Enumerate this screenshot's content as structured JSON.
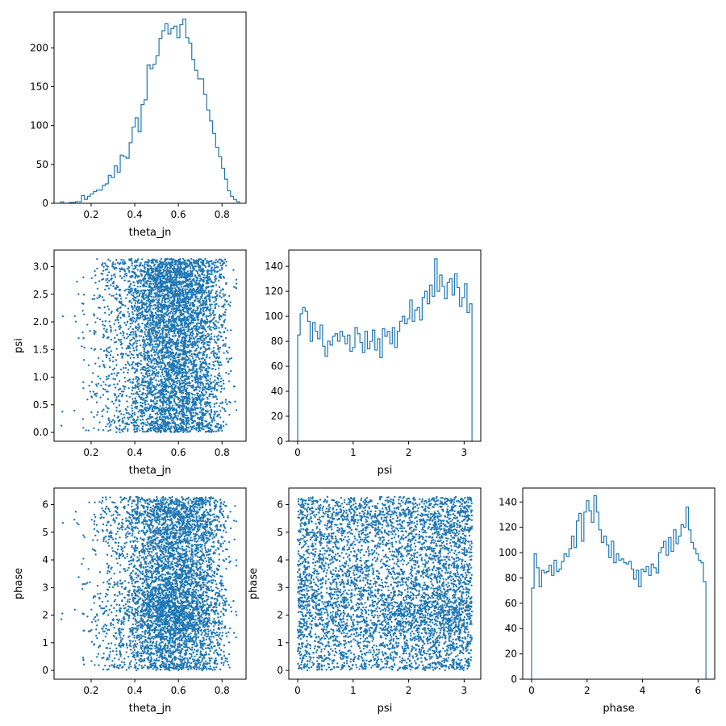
{
  "colors": {
    "series": "#1f77b4",
    "axes": "#000000",
    "background": "#ffffff"
  },
  "chart_data": [
    {
      "id": "hist_theta_jn",
      "type": "histogram",
      "row": 0,
      "col": 0,
      "xlabel": "theta_jn",
      "ylabel": "",
      "xlim": [
        0.03,
        0.91
      ],
      "ylim": [
        0,
        246
      ],
      "xticks": [
        0.2,
        0.4,
        0.6,
        0.8
      ],
      "yticks": [
        0,
        50,
        100,
        150,
        200
      ],
      "bin_range": [
        0.06,
        0.88
      ],
      "bins": 60,
      "counts": [
        2,
        0,
        0,
        1,
        1,
        2,
        2,
        10,
        5,
        9,
        12,
        15,
        17,
        17,
        23,
        25,
        36,
        33,
        48,
        40,
        62,
        60,
        58,
        78,
        98,
        110,
        92,
        127,
        133,
        178,
        173,
        179,
        190,
        212,
        222,
        231,
        218,
        225,
        228,
        213,
        230,
        237,
        213,
        206,
        185,
        171,
        160,
        160,
        140,
        120,
        106,
        90,
        72,
        60,
        45,
        31,
        16,
        9,
        5,
        2
      ],
      "grid": false
    },
    {
      "id": "scatter_theta_jn_psi",
      "type": "scatter",
      "row": 1,
      "col": 0,
      "xlabel": "theta_jn",
      "ylabel": "psi",
      "xlim": [
        0.03,
        0.91
      ],
      "ylim": [
        -0.16,
        3.3
      ],
      "xticks": [
        0.2,
        0.4,
        0.6,
        0.8
      ],
      "yticks": [
        0.0,
        0.5,
        1.0,
        1.5,
        2.0,
        2.5,
        3.0
      ],
      "x_param": "theta_jn",
      "y_param": "psi",
      "grid": false
    },
    {
      "id": "hist_psi",
      "type": "histogram",
      "row": 1,
      "col": 1,
      "xlabel": "psi",
      "ylabel": "",
      "xlim": [
        -0.16,
        3.3
      ],
      "ylim": [
        0,
        153
      ],
      "xticks": [
        0,
        1,
        2,
        3
      ],
      "yticks": [
        0,
        20,
        40,
        60,
        80,
        100,
        120,
        140
      ],
      "bin_range": [
        0,
        3.14159
      ],
      "bins": 70,
      "counts": [
        85,
        102,
        107,
        104,
        96,
        80,
        95,
        88,
        82,
        93,
        76,
        68,
        80,
        77,
        84,
        86,
        80,
        88,
        84,
        78,
        85,
        72,
        75,
        91,
        86,
        79,
        71,
        88,
        74,
        80,
        89,
        73,
        82,
        67,
        90,
        84,
        88,
        78,
        91,
        75,
        88,
        96,
        100,
        94,
        98,
        113,
        96,
        105,
        107,
        97,
        115,
        120,
        110,
        125,
        116,
        146,
        120,
        133,
        124,
        114,
        127,
        130,
        117,
        134,
        123,
        108,
        115,
        126,
        103,
        110
      ],
      "grid": false
    },
    {
      "id": "scatter_theta_jn_phase",
      "type": "scatter",
      "row": 2,
      "col": 0,
      "xlabel": "theta_jn",
      "ylabel": "phase",
      "xlim": [
        0.03,
        0.91
      ],
      "ylim": [
        -0.32,
        6.6
      ],
      "xticks": [
        0.2,
        0.4,
        0.6,
        0.8
      ],
      "yticks": [
        0,
        1,
        2,
        3,
        4,
        5,
        6
      ],
      "x_param": "theta_jn",
      "y_param": "phase",
      "grid": false
    },
    {
      "id": "scatter_psi_phase",
      "type": "scatter",
      "row": 2,
      "col": 1,
      "xlabel": "psi",
      "ylabel": "phase",
      "xlim": [
        -0.16,
        3.3
      ],
      "ylim": [
        -0.32,
        6.6
      ],
      "xticks": [
        0,
        1,
        2,
        3
      ],
      "yticks": [
        0,
        1,
        2,
        3,
        4,
        5,
        6
      ],
      "x_param": "psi",
      "y_param": "phase",
      "grid": false
    },
    {
      "id": "hist_phase",
      "type": "histogram",
      "row": 2,
      "col": 2,
      "xlabel": "phase",
      "ylabel": "",
      "xlim": [
        -0.32,
        6.6
      ],
      "ylim": [
        0,
        151
      ],
      "xticks": [
        0,
        2,
        4,
        6
      ],
      "yticks": [
        0,
        20,
        40,
        60,
        80,
        100,
        120,
        140
      ],
      "bin_range": [
        0,
        6.28318
      ],
      "bins": 70,
      "counts": [
        72,
        99,
        88,
        73,
        86,
        84,
        85,
        90,
        82,
        94,
        85,
        87,
        93,
        99,
        97,
        103,
        113,
        104,
        125,
        131,
        109,
        132,
        141,
        133,
        124,
        145,
        132,
        118,
        108,
        113,
        106,
        96,
        109,
        92,
        99,
        94,
        95,
        92,
        91,
        93,
        87,
        79,
        86,
        73,
        87,
        85,
        89,
        82,
        91,
        88,
        84,
        100,
        104,
        109,
        98,
        112,
        101,
        118,
        107,
        113,
        122,
        120,
        136,
        118,
        108,
        103,
        99,
        94,
        92,
        77
      ],
      "grid": false
    }
  ]
}
